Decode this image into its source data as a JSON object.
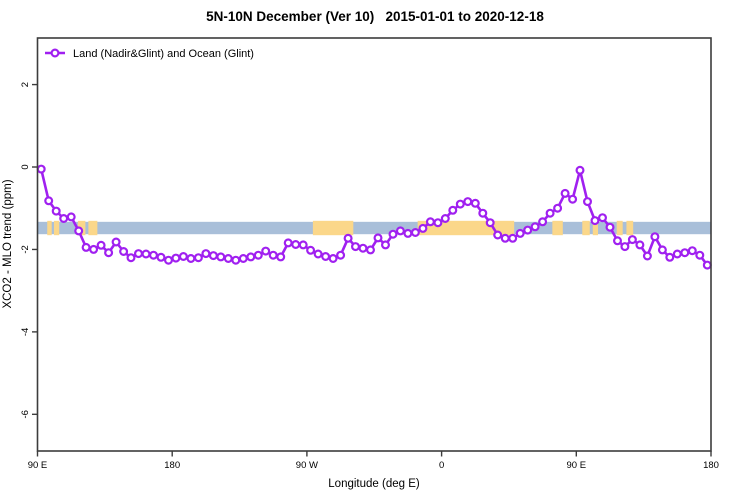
{
  "chart_data": {
    "type": "line",
    "title": "5N-10N December (Ver 10)   2015-01-01 to 2020-12-18",
    "xlabel": "Longitude (deg E)",
    "ylabel": "XCO2 - MLO trend (ppm)",
    "xlim": [
      90,
      540
    ],
    "ylim": [
      -6.89,
      3.13
    ],
    "grid": false,
    "xticks": [
      {
        "value": 90,
        "label": "90 E"
      },
      {
        "value": 180,
        "label": "180"
      },
      {
        "value": 270,
        "label": "90 W"
      },
      {
        "value": 360,
        "label": "0"
      },
      {
        "value": 450,
        "label": "90 E"
      },
      {
        "value": 540,
        "label": "180"
      }
    ],
    "yticks": [
      {
        "value": 2,
        "label": "2"
      },
      {
        "value": 0,
        "label": "0"
      },
      {
        "value": -2,
        "label": "-2"
      },
      {
        "value": -4,
        "label": "-4"
      },
      {
        "value": -6,
        "label": "-6"
      }
    ],
    "legend": {
      "position": "top-left",
      "entries": [
        {
          "label": "Land (Nadir&Glint) and Ocean (Glint)",
          "color": "#a020f0",
          "marker": "open-circle",
          "line": true
        }
      ]
    },
    "latitude_band": {
      "description": "5N-10N strip: ocean in blue, land in orange",
      "y_min": -1.63,
      "y_max": -1.33,
      "ocean_color": "#a9bfd9",
      "land_color": "#fbd78a",
      "land_segments_lon": [
        [
          96.5,
          99.5
        ],
        [
          101,
          104.5
        ],
        [
          117,
          122
        ],
        [
          124,
          130
        ],
        [
          274,
          301
        ],
        [
          344,
          408.5
        ],
        [
          434,
          441
        ],
        [
          454,
          459
        ],
        [
          461,
          464.5
        ],
        [
          477,
          481
        ],
        [
          483.5,
          488
        ]
      ]
    },
    "series": [
      {
        "name": "Land (Nadir&Glint) and Ocean (Glint)",
        "color": "#a020f0",
        "marker": "open-circle",
        "x": [
          92.5,
          97.5,
          102.5,
          107.5,
          112.5,
          117.5,
          122.5,
          127.5,
          132.5,
          137.5,
          142.5,
          147.5,
          152.5,
          157.5,
          162.5,
          167.5,
          172.5,
          177.5,
          182.5,
          187.5,
          192.5,
          197.5,
          202.5,
          207.5,
          212.5,
          217.5,
          222.5,
          227.5,
          232.5,
          237.5,
          242.5,
          247.5,
          252.5,
          257.5,
          262.5,
          267.5,
          272.5,
          277.5,
          282.5,
          287.5,
          292.5,
          297.5,
          302.5,
          307.5,
          312.5,
          317.5,
          322.5,
          327.5,
          332.5,
          337.5,
          342.5,
          347.5,
          352.5,
          357.5,
          362.5,
          367.5,
          372.5,
          377.5,
          382.5,
          387.5,
          392.5,
          397.5,
          402.5,
          407.5,
          412.5,
          417.5,
          422.5,
          427.5,
          432.5,
          437.5,
          442.5,
          447.5,
          452.5,
          457.5,
          462.5,
          467.5,
          472.5,
          477.5,
          482.5,
          487.5,
          492.5,
          497.5,
          502.5,
          507.5,
          512.5,
          517.5,
          522.5,
          527.5,
          532.5,
          537.5
        ],
        "y": [
          -0.05,
          -0.82,
          -1.07,
          -1.25,
          -1.21,
          -1.55,
          -1.95,
          -2.0,
          -1.9,
          -2.08,
          -1.82,
          -2.05,
          -2.2,
          -2.1,
          -2.11,
          -2.14,
          -2.19,
          -2.26,
          -2.21,
          -2.17,
          -2.22,
          -2.2,
          -2.1,
          -2.15,
          -2.18,
          -2.22,
          -2.26,
          -2.22,
          -2.18,
          -2.14,
          -2.04,
          -2.14,
          -2.18,
          -1.84,
          -1.88,
          -1.89,
          -2.02,
          -2.11,
          -2.17,
          -2.22,
          -2.14,
          -1.73,
          -1.93,
          -1.97,
          -2.01,
          -1.72,
          -1.89,
          -1.63,
          -1.55,
          -1.61,
          -1.59,
          -1.49,
          -1.33,
          -1.35,
          -1.25,
          -1.05,
          -0.9,
          -0.84,
          -0.88,
          -1.12,
          -1.35,
          -1.65,
          -1.73,
          -1.73,
          -1.61,
          -1.53,
          -1.45,
          -1.33,
          -1.12,
          -1.0,
          -0.64,
          -0.78,
          -0.08,
          -0.84,
          -1.3,
          -1.23,
          -1.46,
          -1.79,
          -1.93,
          -1.76,
          -1.89,
          -2.16,
          -1.69,
          -2.01,
          -2.19,
          -2.11,
          -2.08,
          -2.03,
          -2.14,
          -2.38
        ]
      }
    ],
    "frame_color": "#3c3c3c",
    "text_color": "#000000"
  }
}
